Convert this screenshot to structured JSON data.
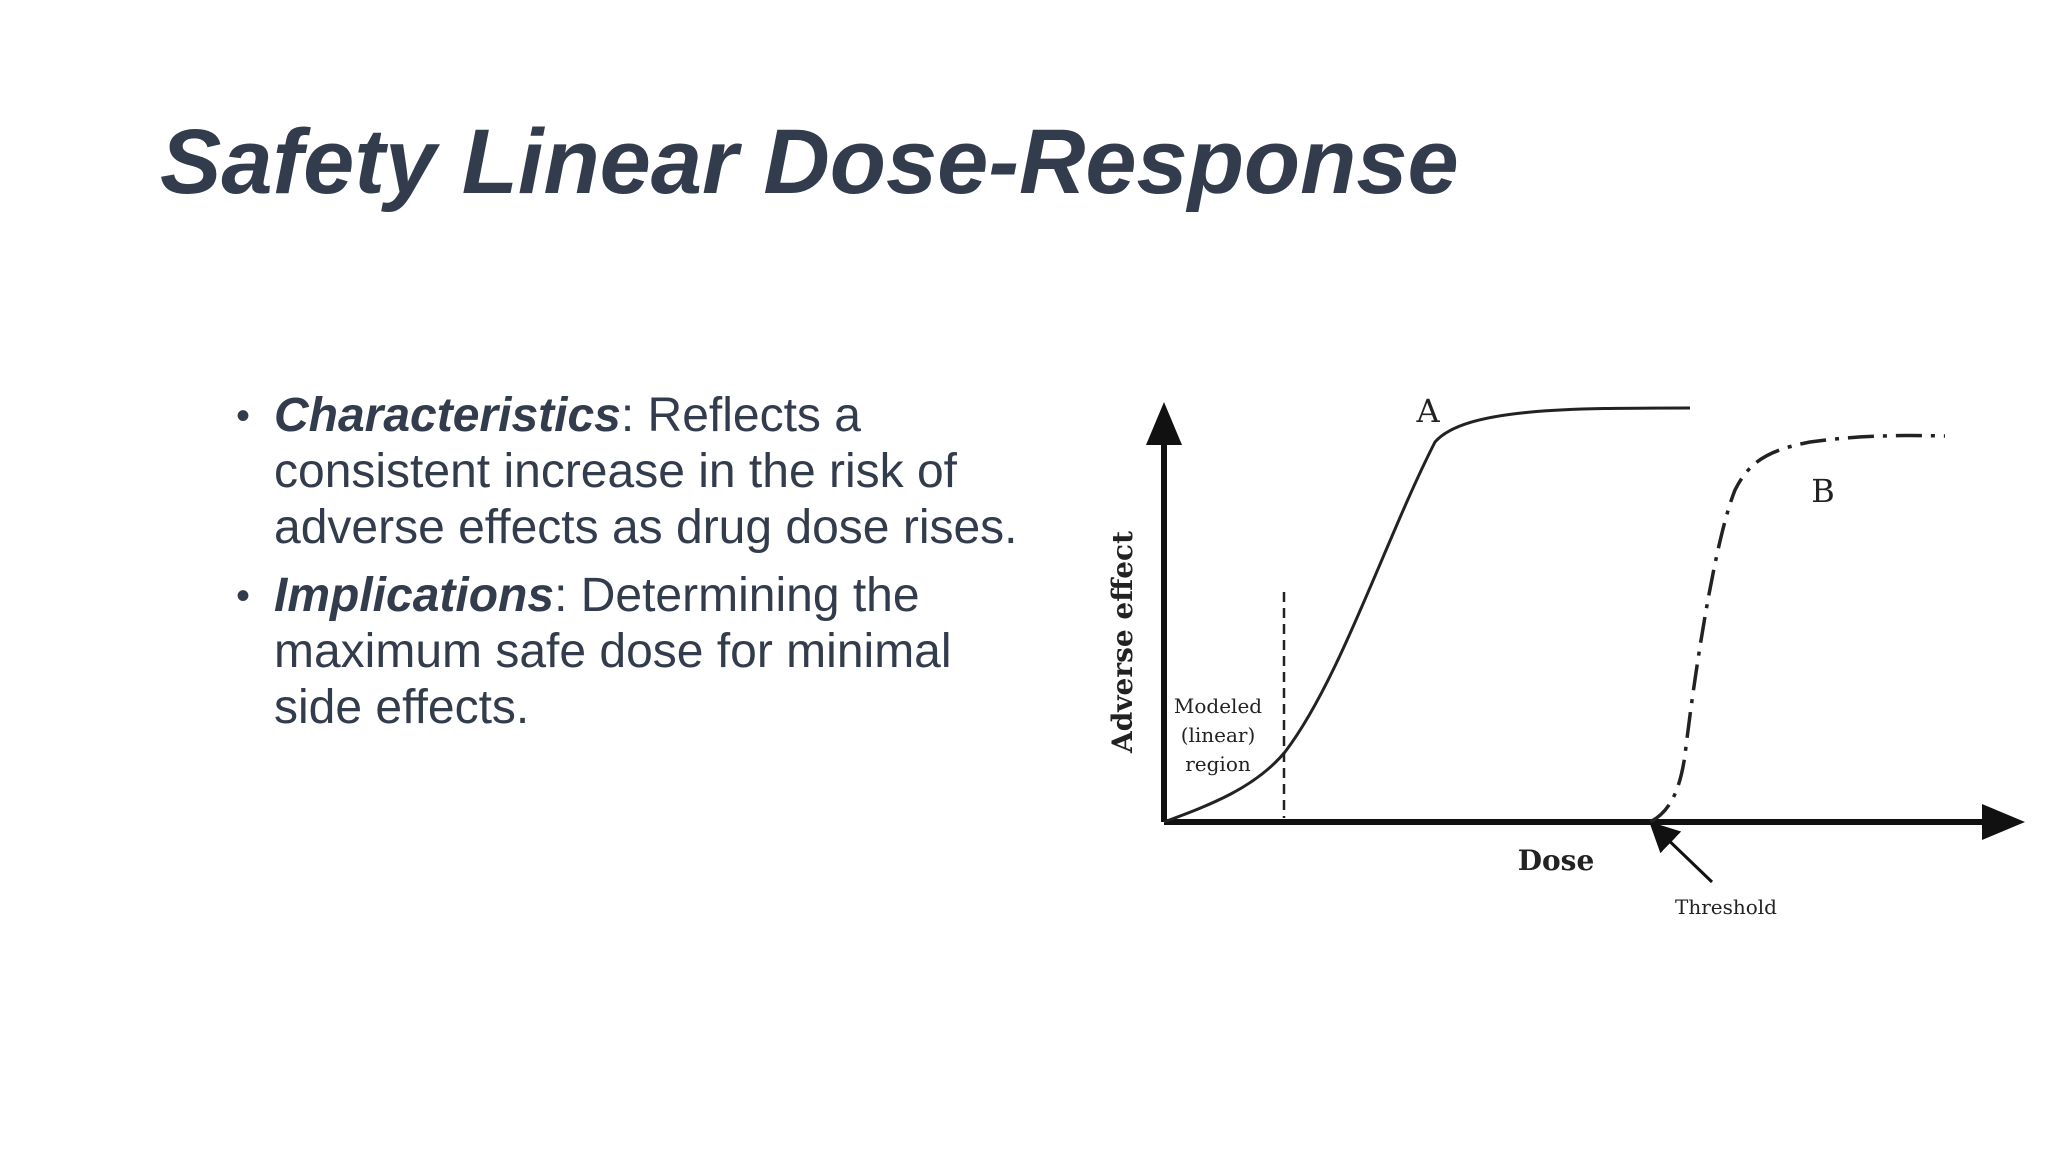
{
  "slide": {
    "title": "Safety Linear Dose-Response",
    "bullets": [
      {
        "term": "Characteristics",
        "text": ": Reflects a consistent increase in the risk of adverse effects as drug dose rises."
      },
      {
        "term": "Implications",
        "text": ": Determining the maximum safe dose for minimal side effects."
      }
    ]
  },
  "figure": {
    "ylabel": "Adverse effect",
    "xlabel": "Dose",
    "curve_a_label": "A",
    "curve_b_label": "B",
    "region_label_line1": "Modeled",
    "region_label_line2": "(linear)",
    "region_label_line3": "region",
    "threshold_label": "Threshold"
  }
}
